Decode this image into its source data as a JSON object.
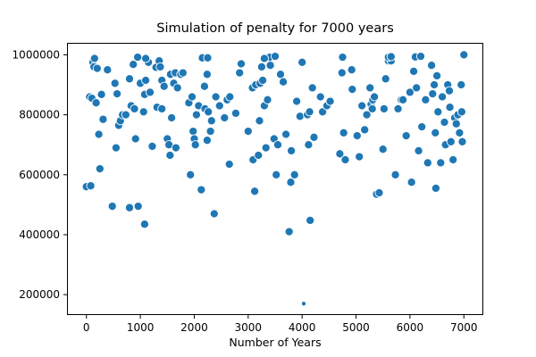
{
  "chart_data": {
    "type": "scatter",
    "title": "Simulation of penalty for 7000 years",
    "xlabel": "Number of Years",
    "ylabel": "",
    "xlim": [
      -360,
      7360
    ],
    "ylim": [
      132000,
      1040000
    ],
    "xticks": [
      0,
      1000,
      2000,
      3000,
      4000,
      5000,
      6000,
      7000
    ],
    "yticks": [
      200000,
      400000,
      600000,
      800000,
      1000000
    ],
    "grid": false,
    "marker_color": "#1f77b4",
    "marker_edge": "#ffffff",
    "series": [
      {
        "points": [
          [
            0,
            560000
          ],
          [
            60,
            860000
          ],
          [
            80,
            563000
          ],
          [
            100,
            855000
          ],
          [
            120,
            975000
          ],
          [
            140,
            960000
          ],
          [
            180,
            840000
          ],
          [
            200,
            955000
          ],
          [
            230,
            735000
          ],
          [
            250,
            620000
          ],
          [
            280,
            868000
          ],
          [
            310,
            785000
          ],
          [
            390,
            950000
          ],
          [
            480,
            495000
          ],
          [
            530,
            905000
          ],
          [
            550,
            690000
          ],
          [
            570,
            870000
          ],
          [
            600,
            765000
          ],
          [
            630,
            780000
          ],
          [
            670,
            800000
          ],
          [
            730,
            800000
          ],
          [
            800,
            920000
          ],
          [
            800,
            490000
          ],
          [
            830,
            830000
          ],
          [
            870,
            968000
          ],
          [
            890,
            820000
          ],
          [
            910,
            720000
          ],
          [
            960,
            495000
          ],
          [
            1000,
            905000
          ],
          [
            1060,
            810000
          ],
          [
            1080,
            868000
          ],
          [
            1100,
            915000
          ],
          [
            1080,
            435000
          ],
          [
            1150,
            975000
          ],
          [
            1180,
            875000
          ],
          [
            1220,
            695000
          ],
          [
            1290,
            958000
          ],
          [
            1310,
            825000
          ],
          [
            1350,
            980000
          ],
          [
            1370,
            960000
          ],
          [
            1400,
            820000
          ],
          [
            1400,
            915000
          ],
          [
            1440,
            895000
          ],
          [
            1500,
            720000
          ],
          [
            1530,
            700000
          ],
          [
            1550,
            665000
          ],
          [
            1560,
            935000
          ],
          [
            1580,
            790000
          ],
          [
            1620,
            905000
          ],
          [
            1650,
            940000
          ],
          [
            1660,
            690000
          ],
          [
            1690,
            890000
          ],
          [
            1750,
            935000
          ],
          [
            1790,
            940000
          ],
          [
            1900,
            840000
          ],
          [
            1930,
            600000
          ],
          [
            1960,
            860000
          ],
          [
            1980,
            745000
          ],
          [
            2000,
            720000
          ],
          [
            2020,
            700000
          ],
          [
            2040,
            800000
          ],
          [
            2080,
            830000
          ],
          [
            2130,
            550000
          ],
          [
            2190,
            895000
          ],
          [
            2200,
            820000
          ],
          [
            2240,
            935000
          ],
          [
            2240,
            715000
          ],
          [
            2260,
            810000
          ],
          [
            2300,
            745000
          ],
          [
            2320,
            780000
          ],
          [
            2370,
            470000
          ],
          [
            2400,
            860000
          ],
          [
            2470,
            830000
          ],
          [
            2560,
            790000
          ],
          [
            2610,
            850000
          ],
          [
            2650,
            635000
          ],
          [
            2660,
            860000
          ],
          [
            2770,
            805000
          ],
          [
            2840,
            940000
          ],
          [
            2870,
            970000
          ],
          [
            3000,
            745000
          ],
          [
            3080,
            890000
          ],
          [
            3090,
            650000
          ],
          [
            3120,
            545000
          ],
          [
            3140,
            900000
          ],
          [
            3190,
            665000
          ],
          [
            3210,
            780000
          ],
          [
            3220,
            905000
          ],
          [
            3250,
            960000
          ],
          [
            3270,
            915000
          ],
          [
            3300,
            830000
          ],
          [
            3330,
            690000
          ],
          [
            3360,
            850000
          ],
          [
            3410,
            965000
          ],
          [
            3480,
            720000
          ],
          [
            3520,
            600000
          ],
          [
            3550,
            700000
          ],
          [
            3600,
            935000
          ],
          [
            3650,
            910000
          ],
          [
            3700,
            735000
          ],
          [
            3760,
            410000
          ],
          [
            3790,
            575000
          ],
          [
            3800,
            680000
          ],
          [
            3860,
            600000
          ],
          [
            3900,
            845000
          ],
          [
            3960,
            795000
          ],
          [
            4000,
            975000
          ],
          [
            4030,
            170000
          ],
          [
            4100,
            800000
          ],
          [
            4120,
            700000
          ],
          [
            4140,
            810000
          ],
          [
            4150,
            448000
          ],
          [
            4190,
            890000
          ],
          [
            4220,
            725000
          ],
          [
            4340,
            860000
          ],
          [
            4380,
            810000
          ],
          [
            4460,
            830000
          ],
          [
            4520,
            845000
          ],
          [
            4700,
            670000
          ],
          [
            4740,
            940000
          ],
          [
            4770,
            740000
          ],
          [
            4800,
            650000
          ],
          [
            4920,
            950000
          ],
          [
            4930,
            885000
          ],
          [
            5020,
            730000
          ],
          [
            5060,
            660000
          ],
          [
            5110,
            830000
          ],
          [
            5160,
            750000
          ],
          [
            5200,
            800000
          ],
          [
            5260,
            890000
          ],
          [
            5280,
            835000
          ],
          [
            5300,
            820000
          ],
          [
            5310,
            850000
          ],
          [
            5340,
            860000
          ],
          [
            5380,
            535000
          ],
          [
            5430,
            540000
          ],
          [
            5500,
            685000
          ],
          [
            5520,
            820000
          ],
          [
            5550,
            920000
          ],
          [
            5600,
            980000
          ],
          [
            5650,
            980000
          ],
          [
            5730,
            600000
          ],
          [
            5780,
            820000
          ],
          [
            5840,
            850000
          ],
          [
            5870,
            850000
          ],
          [
            5930,
            730000
          ],
          [
            6000,
            875000
          ],
          [
            6030,
            575000
          ],
          [
            6070,
            945000
          ],
          [
            6120,
            890000
          ],
          [
            6160,
            680000
          ],
          [
            6220,
            760000
          ],
          [
            6290,
            850000
          ],
          [
            6330,
            640000
          ],
          [
            6400,
            965000
          ],
          [
            6420,
            870000
          ],
          [
            6450,
            900000
          ],
          [
            6470,
            740000
          ],
          [
            6480,
            555000
          ],
          [
            6500,
            930000
          ],
          [
            6520,
            810000
          ],
          [
            6570,
            640000
          ],
          [
            6600,
            860000
          ],
          [
            6640,
            775000
          ],
          [
            6660,
            700000
          ],
          [
            6700,
            900000
          ],
          [
            6730,
            880000
          ],
          [
            6740,
            825000
          ],
          [
            6760,
            710000
          ],
          [
            6800,
            650000
          ],
          [
            6830,
            790000
          ],
          [
            6860,
            770000
          ],
          [
            6890,
            800000
          ],
          [
            6920,
            740000
          ],
          [
            6950,
            900000
          ],
          [
            6960,
            810000
          ],
          [
            6970,
            710000
          ],
          [
            6990,
            1000000
          ],
          [
            7000,
            1000000
          ],
          [
            2150,
            990000
          ],
          [
            2250,
            990000
          ],
          [
            3400,
            992000
          ],
          [
            3500,
            995000
          ],
          [
            4750,
            992000
          ],
          [
            5600,
            992000
          ],
          [
            5650,
            994000
          ],
          [
            6100,
            993000
          ],
          [
            6200,
            995000
          ],
          [
            3300,
            988000
          ],
          [
            1100,
            988000
          ],
          [
            150,
            988000
          ],
          [
            950,
            992000
          ]
        ]
      }
    ]
  }
}
